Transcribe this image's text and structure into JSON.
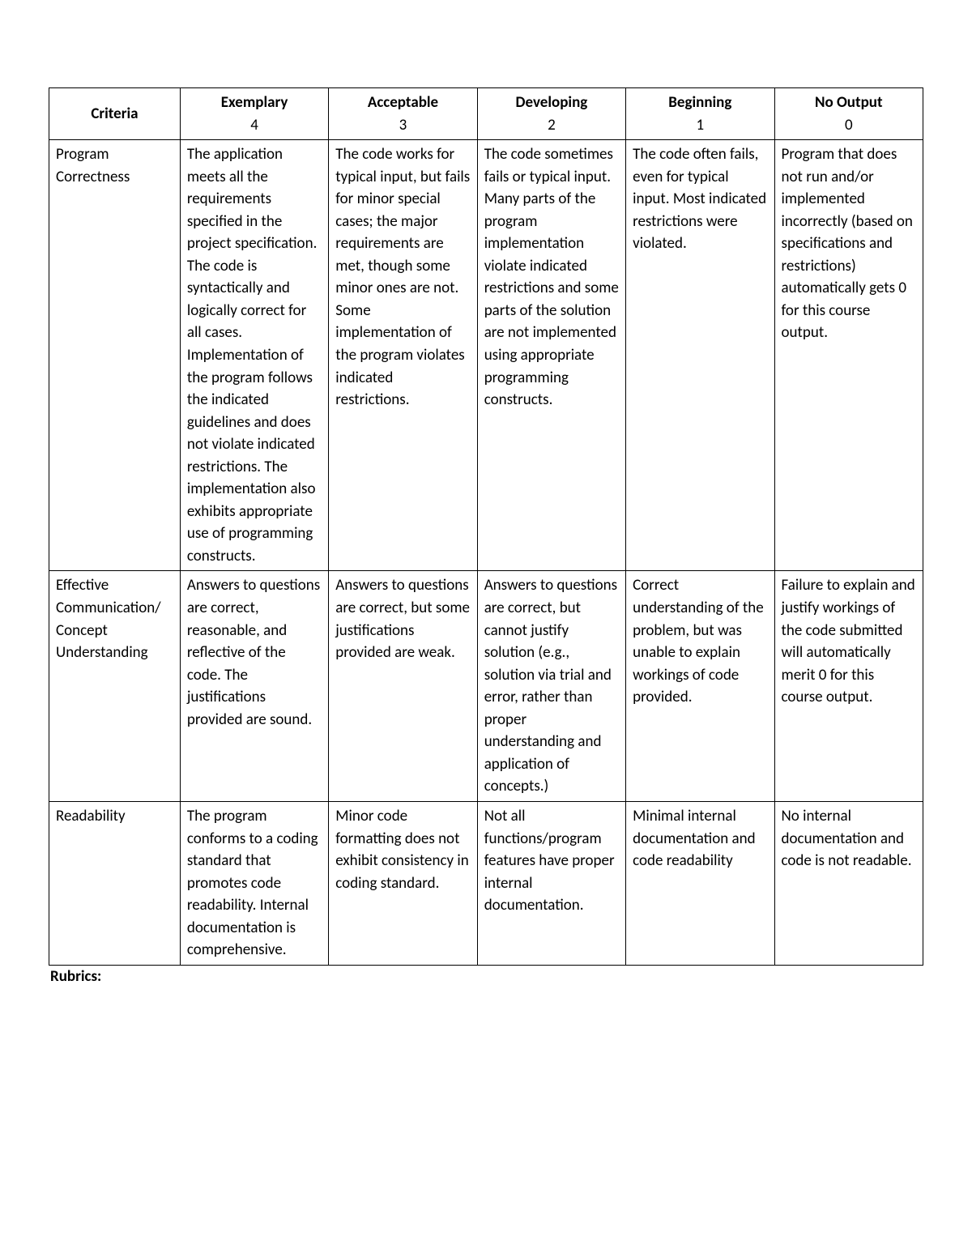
{
  "rubric": {
    "columns": [
      {
        "label": "Criteria",
        "sub": ""
      },
      {
        "label": "Exemplary",
        "sub": "4"
      },
      {
        "label": "Acceptable",
        "sub": "3"
      },
      {
        "label": "Developing",
        "sub": "2"
      },
      {
        "label": "Beginning",
        "sub": "1"
      },
      {
        "label": "No Output",
        "sub": "0"
      }
    ],
    "rows": [
      {
        "criteria": "Program Correctness",
        "cells": [
          "The application meets all the requirements specified in the project specification. The code is syntactically and logically correct for all cases. Implementation of the program follows the indicated guidelines and does not violate indicated restrictions. The implementation also exhibits appropriate use of programming constructs.",
          "The code works for typical input, but fails for minor special cases; the major requirements are met, though some minor ones are not. Some implementation of the program violates indicated restrictions.",
          "The code sometimes fails or typical input. Many parts of the program implementation violate indicated restrictions and some parts of the solution are not implemented using appropriate programming constructs.",
          "The code often fails, even for typical input. Most indicated restrictions were violated.",
          "Program that does not run and/or implemented incorrectly (based on specifications and restrictions) automatically gets 0 for this course output."
        ]
      },
      {
        "criteria": "Effective Communication/ Concept Understanding",
        "cells": [
          "Answers to questions are correct, reasonable, and reflective of the code. The justifications provided are sound.",
          "Answers to questions are correct, but some justifications provided are weak.",
          "Answers to questions are correct, but cannot justify solution (e.g., solution via trial and error, rather than proper understanding and application of concepts.)",
          "Correct understanding of the problem, but was unable to explain workings of code provided.",
          "Failure to explain and justify workings of the code submitted will automatically merit 0 for this course output."
        ]
      },
      {
        "criteria": "Readability",
        "cells": [
          "The program conforms to a coding standard that promotes code readability. Internal documentation is comprehensive.",
          "Minor code formatting does not exhibit consistency in coding standard.",
          "Not all functions/program features have proper internal documentation.",
          "Minimal internal documentation and code readability",
          "No internal documentation and code is not readable."
        ]
      }
    ],
    "footer_label": "Rubrics:"
  }
}
